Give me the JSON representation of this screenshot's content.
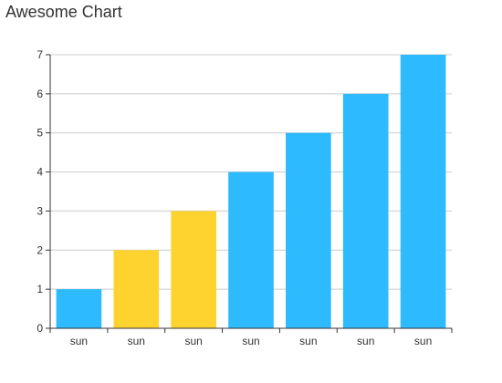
{
  "chart_data": {
    "type": "bar",
    "title": "Awesome Chart",
    "categories": [
      "sun",
      "sun",
      "sun",
      "sun",
      "sun",
      "sun",
      "sun"
    ],
    "values": [
      1,
      2,
      3,
      4,
      5,
      6,
      7
    ],
    "bar_colors": [
      "#2ebafe",
      "#fed330",
      "#fed330",
      "#2ebafe",
      "#2ebafe",
      "#2ebafe",
      "#2ebafe"
    ],
    "ylim": [
      0,
      7
    ],
    "yticks": [
      0,
      1,
      2,
      3,
      4,
      5,
      6,
      7
    ],
    "grid": true,
    "xlabel": "",
    "ylabel": ""
  },
  "colors": {
    "title": "#333333",
    "axis": "#333333",
    "grid": "#cccccc"
  }
}
